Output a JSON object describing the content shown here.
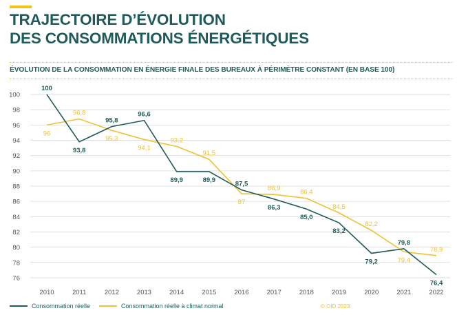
{
  "colors": {
    "accent": "#f0c419",
    "title": "#1e5b5a",
    "grid": "#d8d8d8",
    "axis_text": "#555555",
    "series_reel": "#1e5b5a",
    "series_climat": "#efc12e"
  },
  "header": {
    "title_line1": "TRAJECTOIRE D’ÉVOLUTION",
    "title_line2": "DES CONSOMMATIONS ÉNERGÉTIQUES",
    "subtitle": "ÉVOLUTION DE LA CONSOMMATION EN ÉNERGIE FINALE DES BUREAUX À PÉRIMÈTRE CONSTANT (EN BASE 100)"
  },
  "chart_data": {
    "type": "line",
    "x": [
      "2010",
      "2011",
      "2012",
      "2013",
      "2014",
      "2015",
      "2016",
      "2017",
      "2018",
      "2019",
      "2020",
      "2021",
      "2022"
    ],
    "ylim": [
      75,
      101
    ],
    "yticks": [
      "76",
      "78",
      "80",
      "82",
      "84",
      "86",
      "88",
      "90",
      "92",
      "94",
      "96",
      "98",
      "100"
    ],
    "grid": true,
    "legend_position": "bottom-left",
    "series": [
      {
        "name": "Consommation réelle",
        "values": [
          100,
          93.8,
          95.8,
          96.6,
          89.9,
          89.9,
          87.5,
          86.3,
          85.0,
          83.2,
          79.2,
          79.8,
          76.4
        ],
        "labels": [
          "100",
          "93,8",
          "95,8",
          "96,6",
          "89,9",
          "89,9",
          "87,5",
          "86,3",
          "85,0",
          "83,2",
          "79,2",
          "79,8",
          "76,4"
        ],
        "label_pos": [
          "above",
          "below",
          "above",
          "above",
          "below",
          "below",
          "above",
          "below",
          "below",
          "below",
          "below",
          "above",
          "below"
        ]
      },
      {
        "name": "Consommation réelle à climat normal",
        "values": [
          96,
          96.8,
          95.3,
          94.1,
          93.2,
          91.5,
          87,
          86.9,
          86.4,
          84.5,
          82.2,
          79.4,
          78.9
        ],
        "labels": [
          "96",
          "96,8",
          "95,3",
          "94,1",
          "93,2",
          "91,5",
          "87",
          "86,9",
          "86,4",
          "84,5",
          "82,2",
          "79,4",
          "78,9"
        ],
        "label_pos": [
          "below",
          "above",
          "below",
          "below",
          "above",
          "above",
          "below",
          "above",
          "above",
          "above",
          "above",
          "below",
          "above"
        ]
      }
    ]
  },
  "footer": {
    "copyright": "© OID 2023"
  }
}
